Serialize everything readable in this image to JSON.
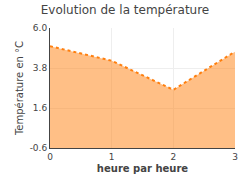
{
  "chart_data": {
    "type": "area",
    "title": "Evolution de la température",
    "xlabel": "heure par heure",
    "ylabel": "Température en °C",
    "x": [
      0,
      1,
      2,
      3
    ],
    "values": [
      5.0,
      4.2,
      2.6,
      4.7
    ],
    "xlim": [
      0,
      3
    ],
    "ylim": [
      -0.6,
      6.0
    ],
    "xticks": [
      0,
      1,
      2,
      3
    ],
    "yticks": [
      -0.6,
      1.6,
      3.8,
      {
        "value": 6.0,
        "label": "6.0"
      }
    ],
    "line_style": "dotted",
    "grid": true
  }
}
